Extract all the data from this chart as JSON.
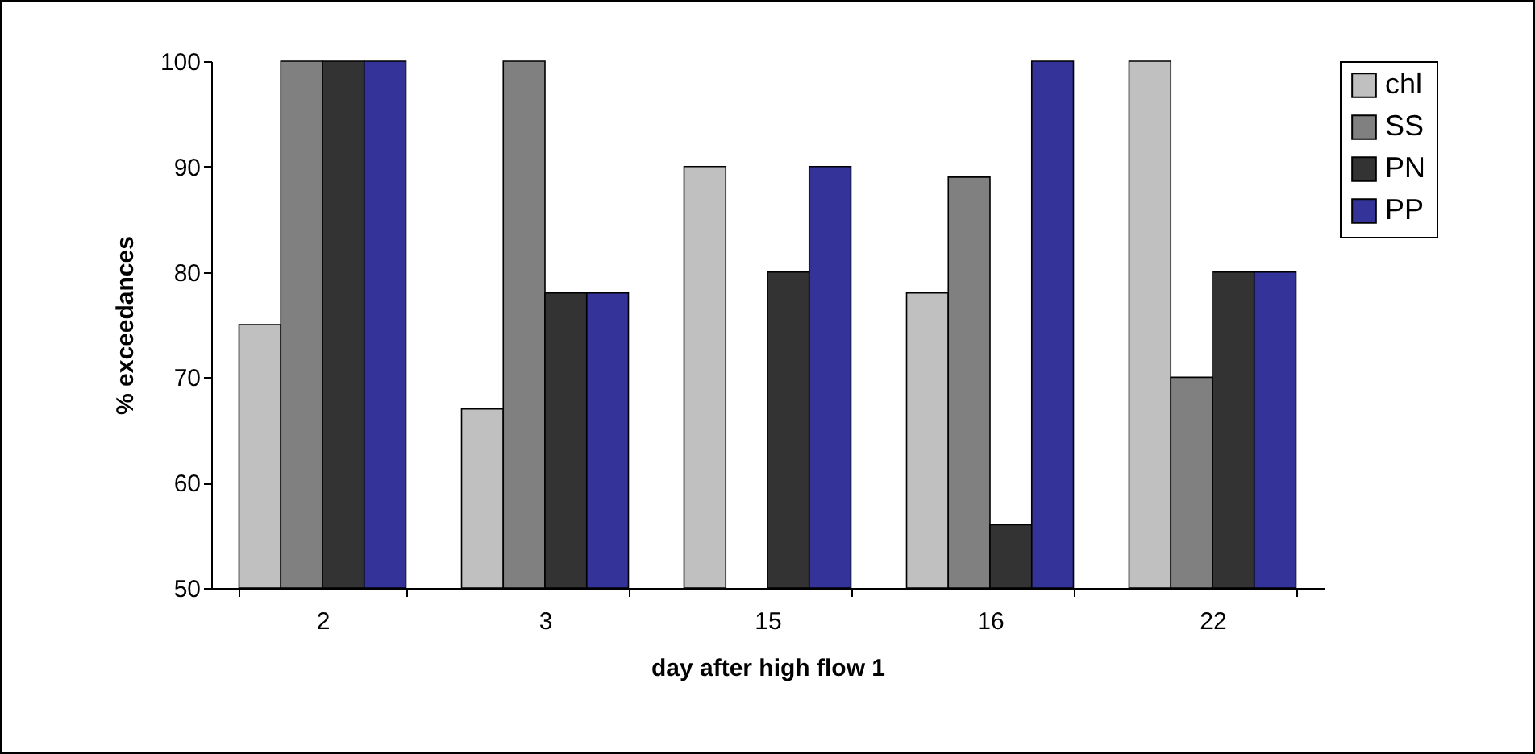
{
  "chart_data": {
    "type": "bar",
    "xlabel": "day after high flow 1",
    "ylabel": "% exceedances",
    "categories": [
      "2",
      "3",
      "15",
      "16",
      "22"
    ],
    "series": [
      {
        "name": "chl",
        "color": "#c0c0c0",
        "values": [
          75,
          67,
          90,
          78,
          100
        ]
      },
      {
        "name": "SS",
        "color": "#808080",
        "values": [
          100,
          100,
          null,
          89,
          70
        ]
      },
      {
        "name": "PN",
        "color": "#333333",
        "values": [
          100,
          78,
          80,
          56,
          80
        ]
      },
      {
        "name": "PP",
        "color": "#333399",
        "values": [
          100,
          78,
          90,
          100,
          80
        ]
      }
    ],
    "ylim": [
      50,
      100
    ],
    "yticks": [
      50,
      60,
      70,
      80,
      90,
      100
    ],
    "grid": false,
    "legend": "top right"
  }
}
